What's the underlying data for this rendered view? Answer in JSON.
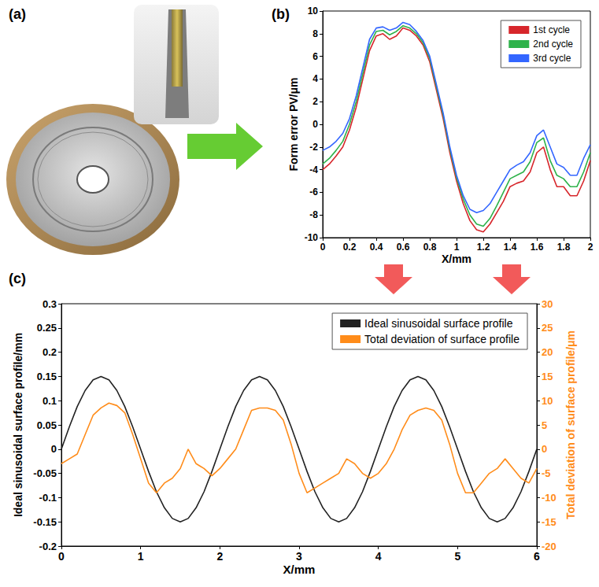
{
  "panel_a": {
    "label": "(a)"
  },
  "chart_data": [
    {
      "label": "(b)",
      "type": "line",
      "x_label": "X/mm",
      "y_label": "Form error PV/μm",
      "x": [
        0,
        0.05,
        0.1,
        0.15,
        0.2,
        0.25,
        0.3,
        0.35,
        0.4,
        0.45,
        0.5,
        0.55,
        0.6,
        0.65,
        0.7,
        0.75,
        0.8,
        0.85,
        0.9,
        0.95,
        1.0,
        1.05,
        1.1,
        1.15,
        1.2,
        1.25,
        1.3,
        1.35,
        1.4,
        1.45,
        1.5,
        1.55,
        1.6,
        1.65,
        1.7,
        1.75,
        1.8,
        1.85,
        1.9,
        1.95,
        2.0
      ],
      "series": [
        {
          "name": "1st cycle",
          "color": "#d7262b",
          "values": [
            -4,
            -3.5,
            -2.8,
            -2,
            -0.5,
            1.5,
            4,
            6.5,
            7.8,
            8,
            7.5,
            7.8,
            8.5,
            8.3,
            7.8,
            7,
            5.5,
            3,
            0.5,
            -2.5,
            -5,
            -7,
            -8.5,
            -9.3,
            -9.5,
            -8.8,
            -7.8,
            -6.8,
            -5.5,
            -5.2,
            -5,
            -4.2,
            -2.5,
            -2,
            -4,
            -5.5,
            -5.5,
            -6.3,
            -6.3,
            -5,
            -3.2
          ]
        },
        {
          "name": "2nd cycle",
          "color": "#2eb24a",
          "values": [
            -3.5,
            -3,
            -2.3,
            -1.5,
            0,
            2,
            4.5,
            7,
            8.2,
            8.3,
            7.9,
            8.2,
            8.7,
            8.5,
            8,
            7.2,
            5.8,
            3.3,
            0.8,
            -2.2,
            -4.7,
            -6.6,
            -8,
            -8.8,
            -9,
            -8.3,
            -7.2,
            -6,
            -4.8,
            -4.5,
            -4.2,
            -3.3,
            -1.6,
            -1.2,
            -3.2,
            -4.5,
            -4.8,
            -5.5,
            -5.5,
            -4.2,
            -2.5
          ]
        },
        {
          "name": "3rd cycle",
          "color": "#3366ff",
          "values": [
            -2.3,
            -2,
            -1.5,
            -0.8,
            0.5,
            2.5,
            5,
            7.5,
            8.5,
            8.6,
            8.3,
            8.5,
            9,
            8.8,
            8.2,
            7.4,
            6,
            3.5,
            1,
            -2,
            -4.5,
            -6.3,
            -7.5,
            -7.8,
            -7.6,
            -7,
            -6,
            -5,
            -4,
            -3.6,
            -3.3,
            -2.5,
            -1,
            -0.5,
            -2,
            -3.5,
            -3.8,
            -4.5,
            -4.5,
            -3,
            -1.8
          ]
        }
      ],
      "xlim": [
        0,
        2
      ],
      "xticks": [
        0,
        0.2,
        0.4,
        0.6,
        0.8,
        1,
        1.2,
        1.4,
        1.6,
        1.8,
        2
      ],
      "ylim": [
        -10,
        10
      ],
      "yticks": [
        -10,
        -8,
        -6,
        -4,
        -2,
        0,
        2,
        4,
        6,
        8,
        10
      ],
      "grid": false,
      "legend": "upper right"
    },
    {
      "label": "(c)",
      "type": "line",
      "x_label": "X/mm",
      "y_label": "Ideal sinusoidal surface profile/mm",
      "y2_label": "Total deviation of surface profile/μm",
      "x": [
        0,
        0.1,
        0.2,
        0.3,
        0.4,
        0.5,
        0.6,
        0.7,
        0.8,
        0.9,
        1.0,
        1.1,
        1.2,
        1.3,
        1.4,
        1.5,
        1.6,
        1.7,
        1.8,
        1.9,
        2.0,
        2.1,
        2.2,
        2.3,
        2.4,
        2.5,
        2.6,
        2.7,
        2.8,
        2.9,
        3.0,
        3.1,
        3.2,
        3.3,
        3.4,
        3.5,
        3.6,
        3.7,
        3.8,
        3.9,
        4.0,
        4.1,
        4.2,
        4.3,
        4.4,
        4.5,
        4.6,
        4.7,
        4.8,
        4.9,
        5.0,
        5.1,
        5.2,
        5.3,
        5.4,
        5.5,
        5.6,
        5.7,
        5.8,
        5.9,
        6.0
      ],
      "series": [
        {
          "name": "Ideal sinusoidal surface profile",
          "color": "#222222",
          "values": [
            0,
            0.046,
            0.088,
            0.121,
            0.143,
            0.15,
            0.143,
            0.121,
            0.088,
            0.046,
            0,
            -0.046,
            -0.088,
            -0.121,
            -0.143,
            -0.15,
            -0.143,
            -0.121,
            -0.088,
            -0.046,
            0,
            0.046,
            0.088,
            0.121,
            0.143,
            0.15,
            0.143,
            0.121,
            0.088,
            0.046,
            0,
            -0.046,
            -0.088,
            -0.121,
            -0.143,
            -0.15,
            -0.143,
            -0.121,
            -0.088,
            -0.046,
            0,
            0.046,
            0.088,
            0.121,
            0.143,
            0.15,
            0.143,
            0.121,
            0.088,
            0.046,
            0,
            -0.046,
            -0.088,
            -0.121,
            -0.143,
            -0.15,
            -0.143,
            -0.121,
            -0.088,
            -0.046,
            0
          ]
        },
        {
          "name": "Total deviation of surface profile",
          "color": "#ff8c1a",
          "axis": "y2",
          "values": [
            -3,
            -2,
            -1,
            3,
            7,
            8.5,
            9.5,
            9,
            7.5,
            3,
            -2,
            -7,
            -9,
            -7,
            -6,
            -4,
            0,
            -3,
            -4,
            -5.5,
            -4,
            -2,
            0,
            4,
            8,
            8.5,
            8.5,
            8,
            6,
            1,
            -5,
            -9,
            -8,
            -7,
            -6,
            -5,
            -2,
            -3,
            -5,
            -6,
            -5,
            -3,
            0,
            4,
            7,
            8,
            8.5,
            8,
            6,
            1,
            -5,
            -9,
            -9,
            -7,
            -5,
            -4,
            -2,
            -4,
            -6,
            -7,
            -4
          ]
        }
      ],
      "xlim": [
        0,
        6
      ],
      "xticks": [
        0,
        1,
        2,
        3,
        4,
        5,
        6
      ],
      "ylim": [
        -0.2,
        0.3
      ],
      "yticks": [
        -0.2,
        -0.15,
        -0.1,
        -0.05,
        0,
        0.05,
        0.1,
        0.15,
        0.2,
        0.25,
        0.3
      ],
      "y2lim": [
        -20,
        30
      ],
      "y2ticks": [
        -20,
        -15,
        -10,
        -5,
        0,
        5,
        10,
        15,
        20,
        25,
        30
      ],
      "grid": false,
      "legend": "upper right"
    }
  ]
}
